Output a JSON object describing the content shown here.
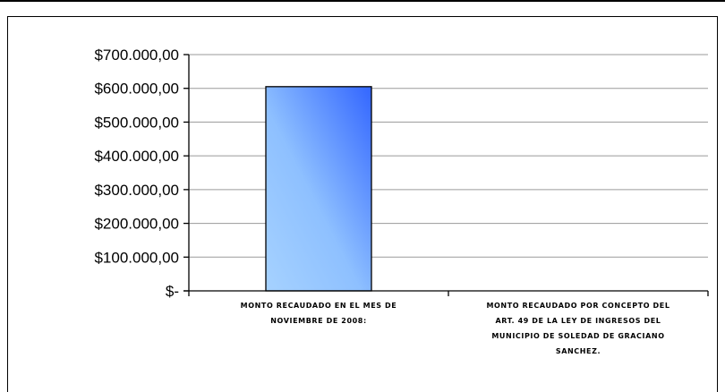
{
  "chart_data": {
    "type": "bar",
    "categories": [
      [
        "MONTO RECAUDADO EN EL MES DE",
        "NOVIEMBRE DE 2008:"
      ],
      [
        "MONTO RECAUDADO POR CONCEPTO DEL",
        "ART. 49 DE LA LEY DE INGRESOS DEL",
        "MUNICIPIO DE SOLEDAD DE GRACIANO",
        "SANCHEZ."
      ]
    ],
    "values": [
      605000,
      0
    ],
    "ylim": [
      0,
      700000
    ],
    "yticks": [
      0,
      100000,
      200000,
      300000,
      400000,
      500000,
      600000,
      700000
    ],
    "ytick_labels": [
      "$-",
      "$100.000,00",
      "$200.000,00",
      "$300.000,00",
      "$400.000,00",
      "$500.000,00",
      "$600.000,00",
      "$700.000,00"
    ],
    "grid": true,
    "bar_color_light": "#a6d2ff",
    "bar_color_dark": "#3366ff",
    "grid_color": "#9a9a9a"
  }
}
